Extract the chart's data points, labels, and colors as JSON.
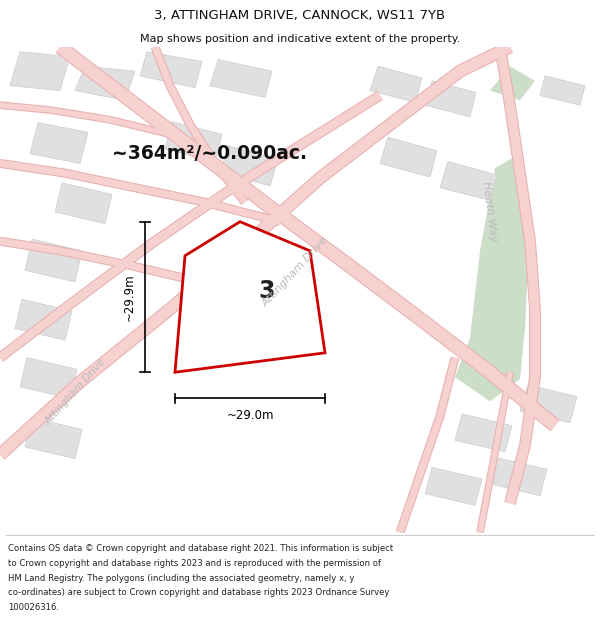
{
  "title": "3, ATTINGHAM DRIVE, CANNOCK, WS11 7YB",
  "subtitle": "Map shows position and indicative extent of the property.",
  "area_label": "~364m²/~0.090ac.",
  "plot_number": "3",
  "width_label": "~29.0m",
  "height_label": "~29.9m",
  "footer_lines": [
    "Contains OS data © Crown copyright and database right 2021. This information is subject",
    "to Crown copyright and database rights 2023 and is reproduced with the permission of",
    "HM Land Registry. The polygons (including the associated geometry, namely x, y",
    "co-ordinates) are subject to Crown copyright and database rights 2023 Ordnance Survey",
    "100026316."
  ],
  "bg_color": "#f2f2f2",
  "map_bg": "#ebebeb",
  "road_fill_color": "#f7d0d0",
  "road_edge_color": "#e8b0b0",
  "plot_fill": "#ffffff",
  "plot_stroke": "#cc0000",
  "green_color": "#ccdec8",
  "building_fill": "#e0e0e0",
  "building_edge": "#cccccc",
  "road_label_color": "#bbbbbb",
  "text_color": "#111111",
  "footer_text_color": "#222222"
}
